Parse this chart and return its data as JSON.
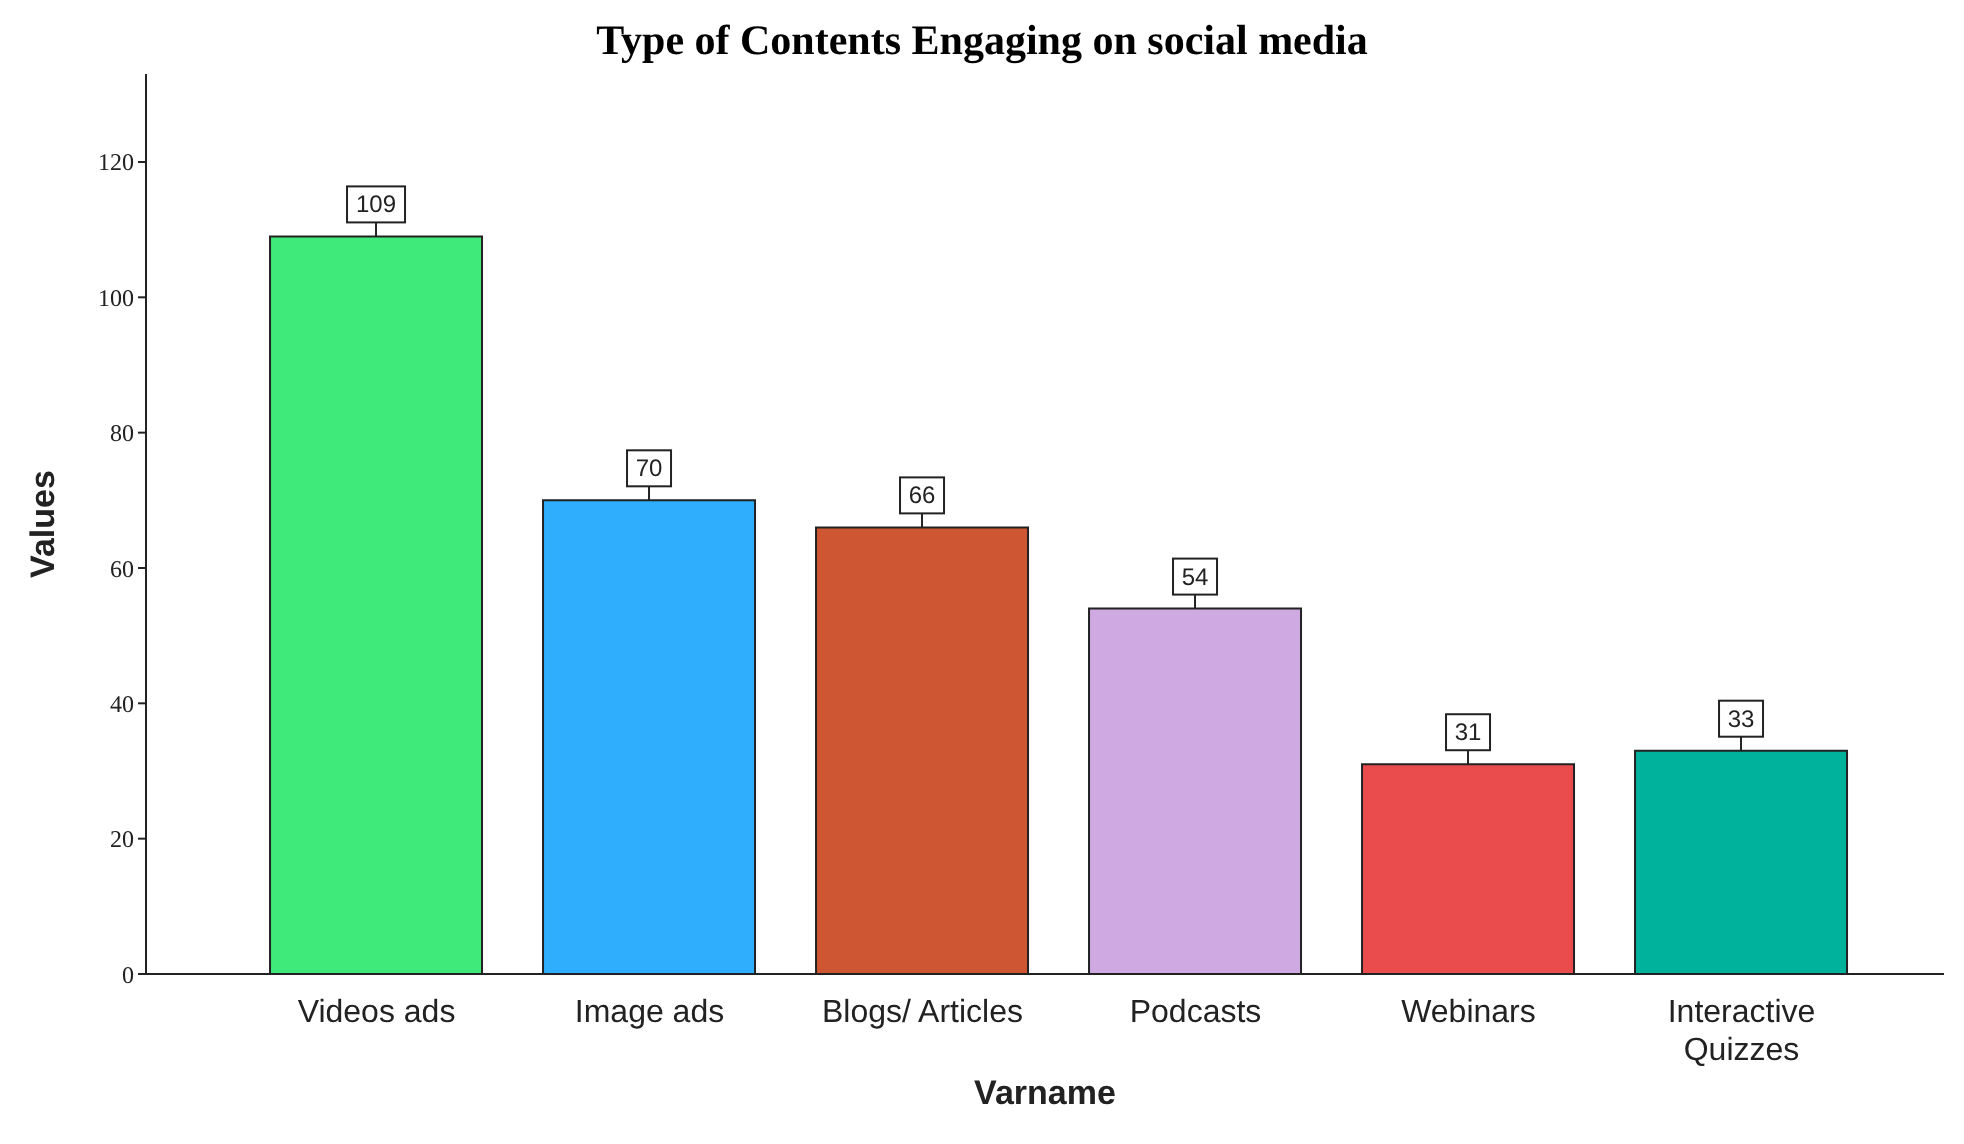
{
  "chart_data": {
    "type": "bar",
    "title": "Type of Contents Engaging on social media",
    "xlabel": "Varname",
    "ylabel": "Values",
    "categories": [
      "Videos ads",
      "Image ads",
      "Blogs/ Articles",
      "Podcasts",
      "Webinars",
      "Interactive Quizzes"
    ],
    "values": [
      109,
      70,
      66,
      54,
      31,
      33
    ],
    "colors": [
      "#40ea7a",
      "#2eaefc",
      "#cf5632",
      "#cfa9e2",
      "#ea4b4d",
      "#00b29c"
    ],
    "ylim": [
      0,
      133
    ],
    "yticks": [
      0,
      20,
      40,
      60,
      80,
      100,
      120
    ],
    "grid": false,
    "legend": false,
    "data_labels": true
  }
}
